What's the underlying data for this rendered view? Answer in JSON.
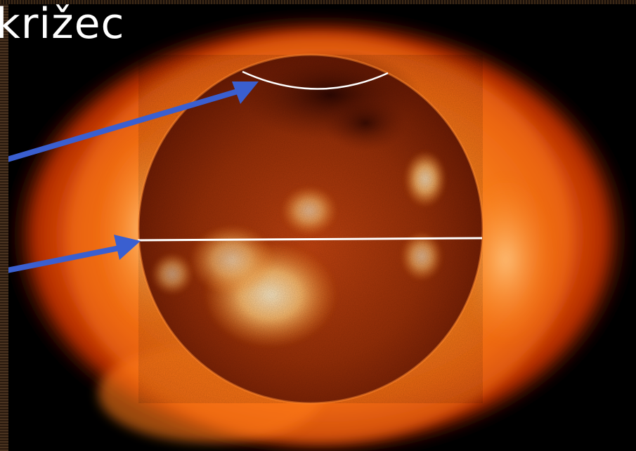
{
  "slide": {
    "title": "križec"
  },
  "image": {
    "subject": "sun-xray",
    "colors": {
      "background": "#000000",
      "corona_outer": "#b02a02",
      "corona_mid": "#e85a0c",
      "corona_inner": "#ff9a30",
      "disk": "#8a2606",
      "disk_dark": "#3a0a02",
      "active_region": "#ffe4b0",
      "arrow": "#3a5fd0",
      "marker_line": "#ffffff"
    }
  },
  "annotations": {
    "arrows": [
      {
        "name": "arrow-to-polar-arc",
        "color": "#3a5fd0"
      },
      {
        "name": "arrow-to-equator",
        "color": "#3a5fd0"
      }
    ],
    "markers": [
      {
        "name": "polar-arc",
        "color": "#ffffff"
      },
      {
        "name": "equator-line",
        "color": "#ffffff"
      }
    ]
  }
}
